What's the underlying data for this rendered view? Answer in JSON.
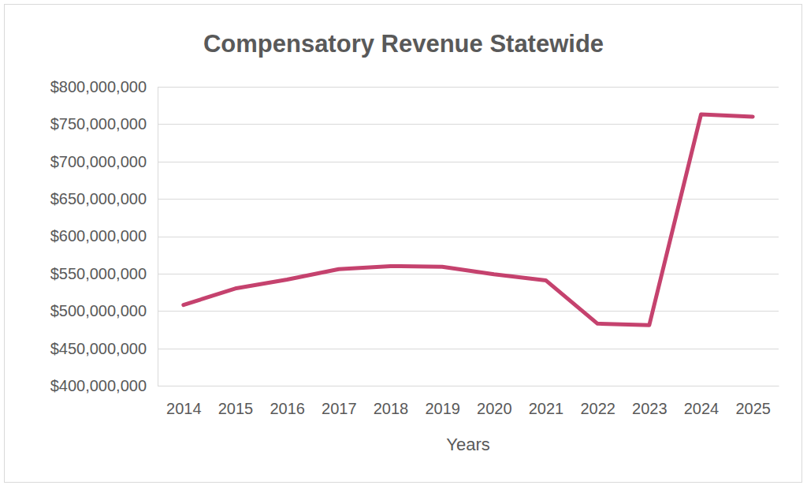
{
  "chart_data": {
    "type": "line",
    "title": "Compensatory Revenue Statewide",
    "x_label": "Years",
    "categories": [
      "2014",
      "2015",
      "2016",
      "2017",
      "2018",
      "2019",
      "2020",
      "2021",
      "2022",
      "2023",
      "2024",
      "2025"
    ],
    "values": [
      508000000,
      530000000,
      542000000,
      556000000,
      560000000,
      559000000,
      549000000,
      541000000,
      483000000,
      481000000,
      763000000,
      760000000
    ],
    "color": "#c5426e",
    "ylim": [
      400000000,
      800000000
    ],
    "yticks": [
      {
        "value": 400000000,
        "label": "$400,000,000"
      },
      {
        "value": 450000000,
        "label": "$450,000,000"
      },
      {
        "value": 500000000,
        "label": "$500,000,000"
      },
      {
        "value": 550000000,
        "label": "$550,000,000"
      },
      {
        "value": 600000000,
        "label": "$600,000,000"
      },
      {
        "value": 650000000,
        "label": "$650,000,000"
      },
      {
        "value": 700000000,
        "label": "$700,000,000"
      },
      {
        "value": 750000000,
        "label": "$750,000,000"
      },
      {
        "value": 800000000,
        "label": "$800,000,000"
      }
    ],
    "grid": true
  }
}
